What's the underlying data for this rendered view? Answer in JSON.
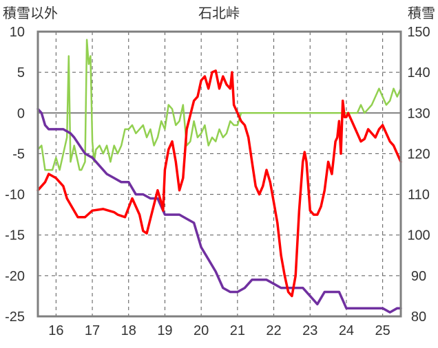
{
  "chart_data": {
    "type": "line",
    "title": "石北峠",
    "left_axis_label": "積雪以外",
    "right_axis_label": "積雪",
    "x_ticks": [
      16,
      17,
      18,
      19,
      20,
      21,
      22,
      23,
      24,
      25
    ],
    "xlim": [
      15.5,
      25.5
    ],
    "y_left_ticks": [
      10,
      5,
      0,
      -5,
      -10,
      -15,
      -20,
      -25
    ],
    "y_left_lim": [
      -25,
      10
    ],
    "y_right_ticks": [
      150,
      140,
      130,
      120,
      110,
      100,
      90,
      80
    ],
    "y_right_lim": [
      80,
      150
    ],
    "grid": true,
    "series": [
      {
        "axis": "left",
        "color": "#ff0000",
        "x": [
          15.5,
          15.6,
          15.7,
          15.8,
          16.0,
          16.1,
          16.2,
          16.3,
          16.6,
          16.8,
          17.0,
          17.3,
          17.6,
          17.7,
          17.9,
          18.1,
          18.3,
          18.4,
          18.5,
          18.6,
          18.8,
          18.9,
          18.95,
          19.0,
          19.1,
          19.2,
          19.3,
          19.4,
          19.5,
          19.6,
          19.8,
          19.9,
          20.0,
          20.1,
          20.2,
          20.3,
          20.4,
          20.5,
          20.6,
          20.7,
          20.8,
          20.85,
          20.9,
          21.0,
          21.1,
          21.2,
          21.3,
          21.4,
          21.5,
          21.6,
          21.7,
          21.8,
          21.9,
          22.0,
          22.1,
          22.2,
          22.3,
          22.4,
          22.5,
          22.6,
          22.7,
          22.8,
          22.85,
          22.9,
          23.0,
          23.1,
          23.2,
          23.3,
          23.4,
          23.5,
          23.6,
          23.7,
          23.75,
          23.8,
          23.85,
          23.9,
          23.95,
          24.0,
          24.05,
          24.1,
          24.2,
          24.3,
          24.4,
          24.5,
          24.6,
          24.7,
          24.8,
          24.9,
          25.0,
          25.1,
          25.2,
          25.3,
          25.4,
          25.5
        ],
        "y": [
          -9.5,
          -9.0,
          -8.5,
          -7.5,
          -8.0,
          -8.5,
          -9.0,
          -10.5,
          -12.8,
          -12.8,
          -12.0,
          -11.8,
          -12.2,
          -12.5,
          -12.8,
          -10.5,
          -12.5,
          -14.5,
          -14.8,
          -13.0,
          -9.5,
          -11.0,
          -12.0,
          -7.0,
          -4.5,
          -3.5,
          -6.0,
          -9.5,
          -8.0,
          -2.0,
          1.5,
          2.0,
          4.0,
          4.5,
          3.0,
          5.0,
          5.2,
          3.0,
          4.5,
          3.5,
          3.0,
          5.0,
          1.0,
          0.0,
          -1.0,
          -1.5,
          -3.0,
          -6.0,
          -9.0,
          -10.0,
          -9.0,
          -7.0,
          -8.5,
          -11.0,
          -13.5,
          -17.5,
          -20.0,
          -22.0,
          -22.5,
          -20.0,
          -12.0,
          -6.0,
          -4.8,
          -6.0,
          -12.0,
          -12.5,
          -12.5,
          -11.5,
          -9.5,
          -6.0,
          -7.5,
          -3.5,
          -3.0,
          -1.0,
          -5.0,
          1.5,
          -0.5,
          -0.5,
          0.0,
          -0.5,
          -1.5,
          -2.5,
          -3.5,
          -3.2,
          -2.0,
          -2.5,
          -3.0,
          -2.0,
          -1.5,
          -2.5,
          -3.5,
          -4.0,
          -5.0,
          -6.0
        ]
      },
      {
        "axis": "left",
        "color": "#92d050",
        "x": [
          15.5,
          15.6,
          15.7,
          15.8,
          15.9,
          16.0,
          16.1,
          16.2,
          16.3,
          16.35,
          16.4,
          16.45,
          16.5,
          16.6,
          16.65,
          16.7,
          16.8,
          16.85,
          16.9,
          16.95,
          17.0,
          17.05,
          17.1,
          17.2,
          17.3,
          17.4,
          17.5,
          17.6,
          17.7,
          17.8,
          17.9,
          18.0,
          18.1,
          18.2,
          18.3,
          18.4,
          18.5,
          18.6,
          18.7,
          18.8,
          18.9,
          19.0,
          19.1,
          19.2,
          19.3,
          19.4,
          19.5,
          19.6,
          19.7,
          19.8,
          19.9,
          20.0,
          20.1,
          20.2,
          20.3,
          20.4,
          20.5,
          20.6,
          20.7,
          20.8,
          20.9,
          21.0,
          21.1,
          21.2,
          21.3,
          21.4,
          21.5,
          22.0,
          22.5,
          23.0,
          23.5,
          24.0,
          24.1,
          24.2,
          24.3,
          24.4,
          24.5,
          24.6,
          24.7,
          24.8,
          24.9,
          25.0,
          25.1,
          25.2,
          25.3,
          25.4,
          25.5
        ],
        "y": [
          -4.5,
          -4.0,
          -7.0,
          -7.0,
          -7.0,
          -5.5,
          -7.0,
          -5.0,
          -3.0,
          7.0,
          -6.0,
          -5.0,
          -4.0,
          -6.0,
          -7.0,
          -7.0,
          -6.0,
          9.0,
          6.0,
          7.0,
          -3.5,
          -6.0,
          -4.5,
          -4.0,
          -5.0,
          -4.0,
          -6.0,
          -4.0,
          -5.0,
          -4.0,
          -2.0,
          -2.0,
          -1.5,
          -2.5,
          -2.0,
          -1.5,
          -3.0,
          -2.0,
          -4.0,
          -3.0,
          -1.0,
          -2.0,
          1.0,
          0.5,
          -1.5,
          -1.0,
          1.0,
          -4.0,
          -3.5,
          -1.0,
          -3.0,
          -2.5,
          -1.5,
          -4.0,
          -3.0,
          -3.5,
          -2.0,
          -3.0,
          -2.5,
          -1.0,
          -1.5,
          -1.5,
          0.0,
          0.0,
          0.0,
          0.0,
          0.0,
          0.0,
          0.0,
          0.0,
          0.0,
          0.0,
          0.0,
          0.0,
          0.0,
          1.0,
          0.0,
          0.5,
          1.0,
          2.0,
          3.0,
          2.0,
          1.0,
          1.5,
          3.0,
          2.0,
          3.0
        ]
      },
      {
        "axis": "right",
        "color": "#7030a0",
        "x": [
          15.5,
          15.6,
          15.7,
          15.8,
          16.0,
          16.2,
          16.4,
          16.5,
          16.8,
          17.0,
          17.2,
          17.4,
          17.6,
          17.8,
          18.0,
          18.2,
          18.4,
          18.6,
          18.8,
          19.0,
          19.2,
          19.4,
          19.6,
          19.8,
          20.0,
          20.2,
          20.4,
          20.6,
          20.8,
          21.0,
          21.2,
          21.4,
          21.6,
          21.8,
          22.0,
          22.2,
          22.4,
          22.6,
          22.8,
          23.0,
          23.2,
          23.4,
          23.6,
          23.8,
          23.9,
          24.0,
          24.2,
          24.4,
          24.6,
          24.8,
          25.0,
          25.2,
          25.4,
          25.5
        ],
        "y": [
          131,
          130,
          127,
          126,
          126,
          126,
          125,
          124,
          120,
          119,
          117,
          115,
          114,
          113,
          113,
          110,
          110,
          109,
          109,
          105,
          105,
          105,
          104,
          103,
          97,
          94,
          91,
          87,
          86,
          86,
          87,
          89,
          89,
          89,
          88,
          87,
          87,
          87,
          87,
          85,
          83,
          86,
          86,
          86,
          84,
          82,
          82,
          82,
          82,
          82,
          82,
          81,
          82,
          82
        ]
      }
    ]
  }
}
